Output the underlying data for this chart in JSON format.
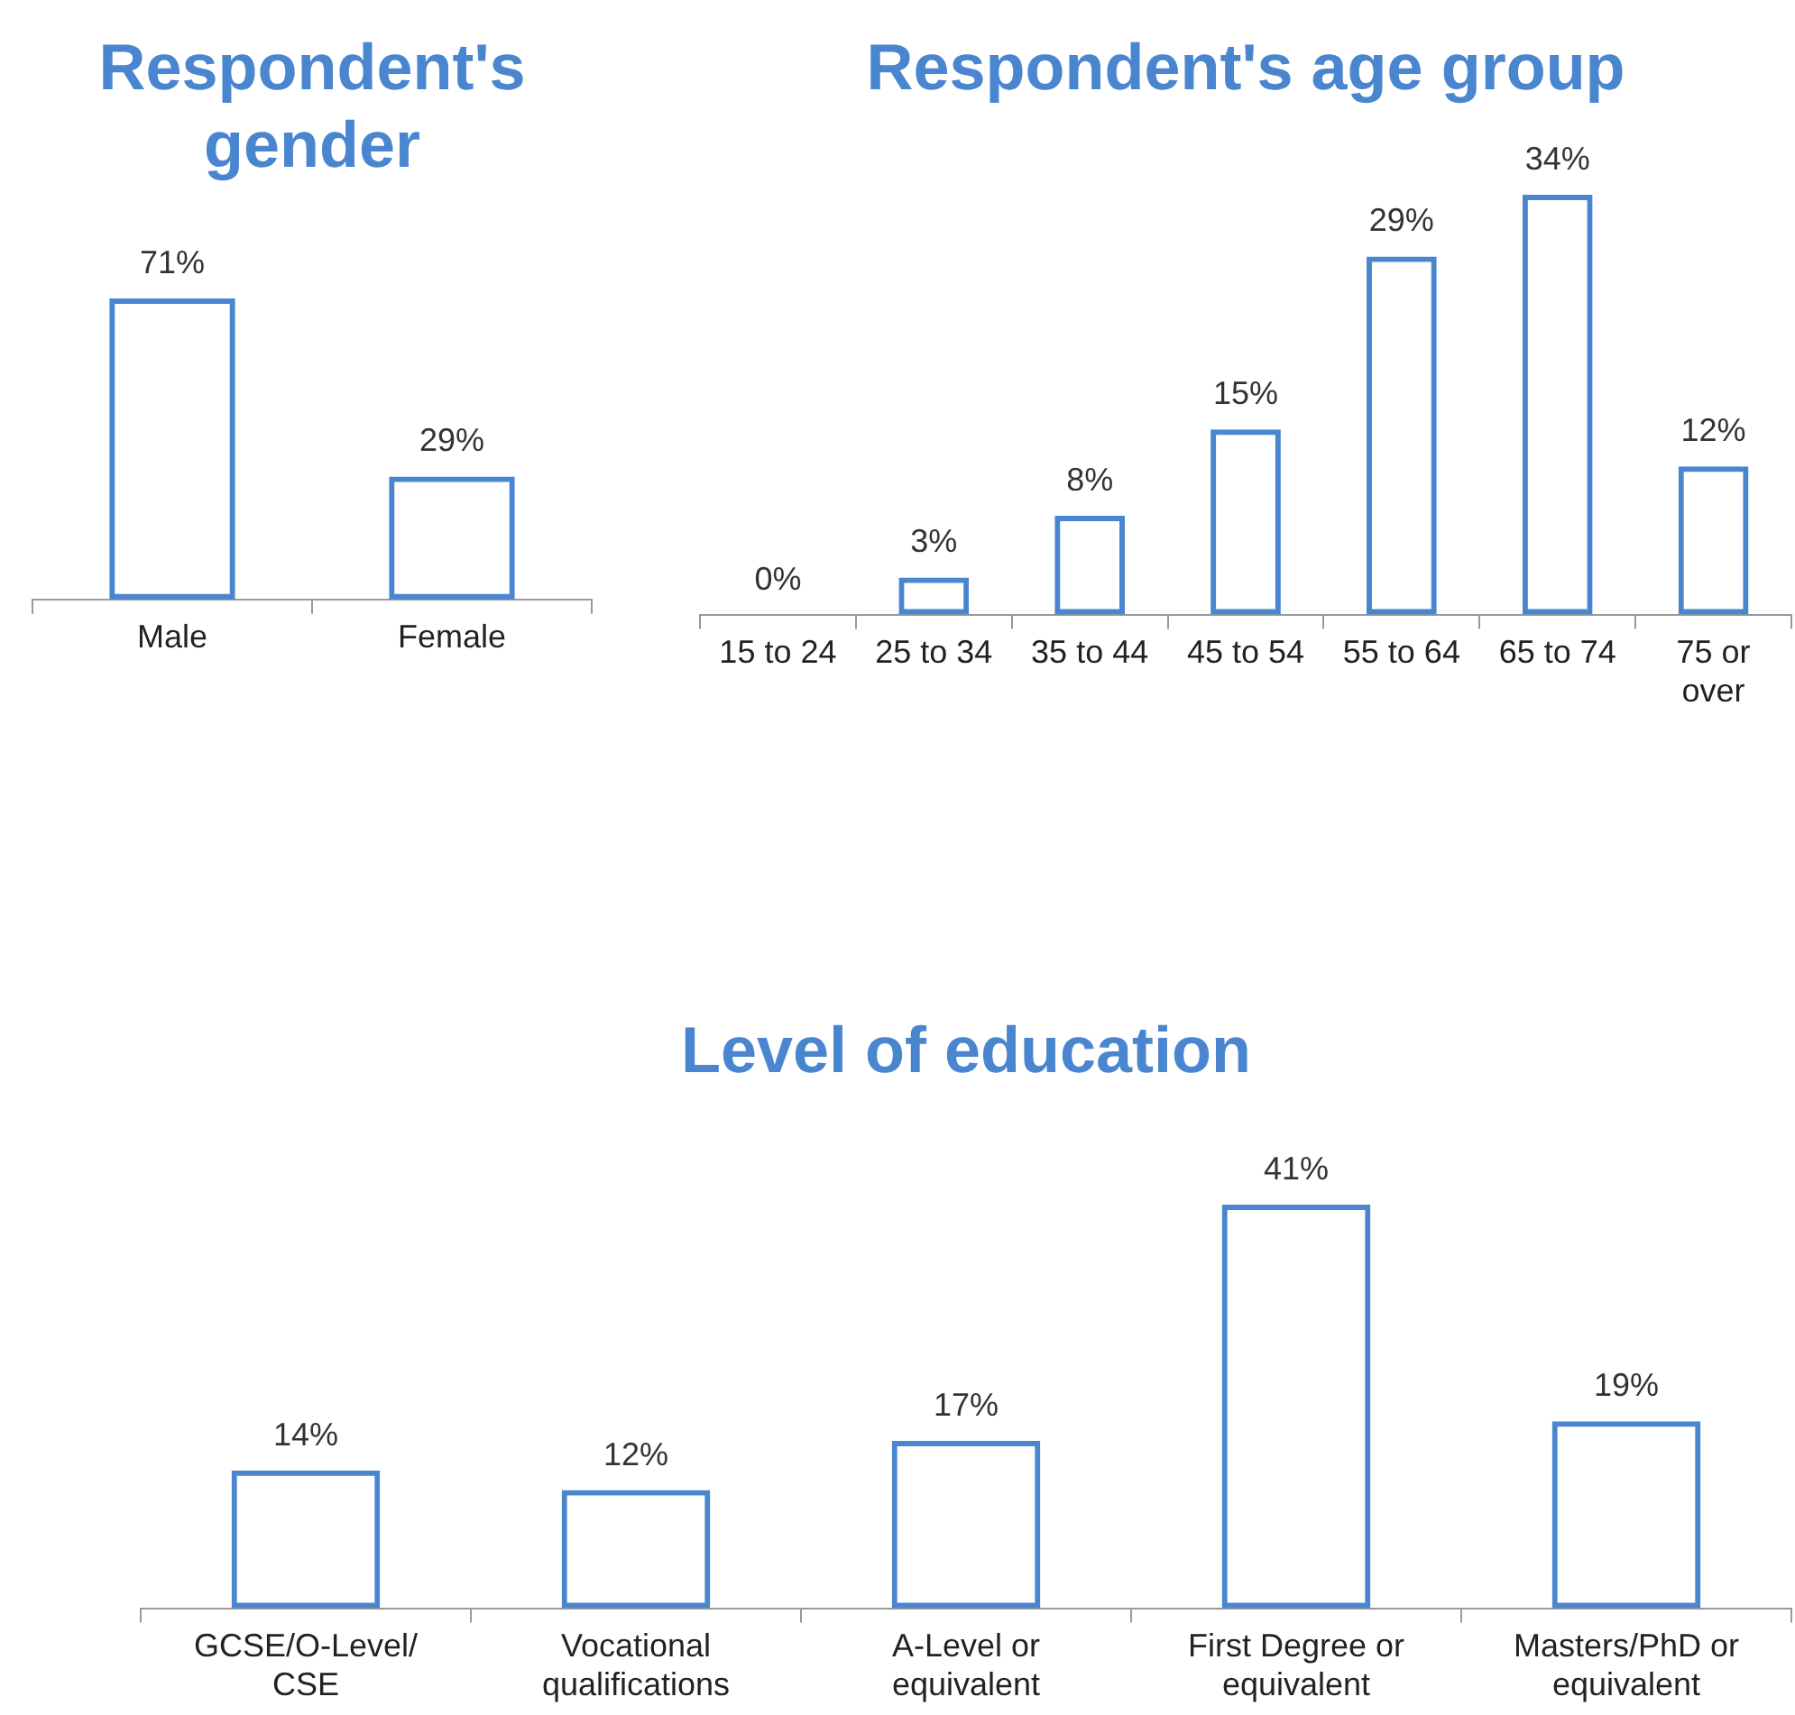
{
  "chart_data": [
    {
      "type": "bar",
      "title": "Respondent's gender",
      "categories": [
        "Male",
        "Female"
      ],
      "values": [
        71,
        29
      ],
      "value_labels": [
        "71%",
        "29%"
      ],
      "color": "#4a86d0"
    },
    {
      "type": "bar",
      "title": "Respondent's age group",
      "categories": [
        "15 to 24",
        "25 to 34",
        "35 to 44",
        "45 to 54",
        "55 to 64",
        "65 to 74",
        "75 or over"
      ],
      "values": [
        0,
        3,
        8,
        15,
        29,
        34,
        12
      ],
      "value_labels": [
        "0%",
        "3%",
        "8%",
        "15%",
        "29%",
        "34%",
        "12%"
      ],
      "color": "#4a86d0"
    },
    {
      "type": "bar",
      "title": "Level of education",
      "categories": [
        "GCSE/O-Level/CSE",
        "Vocational qualifications",
        "A-Level or equivalent",
        "First Degree or equivalent",
        "Masters/PhD or equivalent"
      ],
      "values": [
        14,
        12,
        17,
        41,
        19
      ],
      "value_labels": [
        "14%",
        "12%",
        "17%",
        "41%",
        "19%"
      ],
      "color": "#4a86d0"
    }
  ]
}
